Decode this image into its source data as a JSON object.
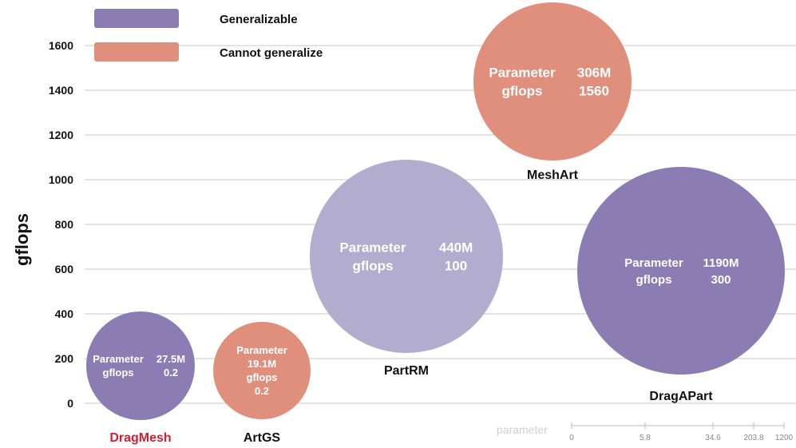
{
  "chart_data": {
    "type": "bubble",
    "ylabel": "gflops",
    "yticks": [
      0,
      200,
      400,
      600,
      800,
      1000,
      1200,
      1400,
      1600
    ],
    "grid": true,
    "legend": {
      "placement": "top-left",
      "entries": [
        {
          "label": "Generalizable",
          "color": "#8b7db3"
        },
        {
          "label": "Cannot generalize",
          "color": "#e08f7d"
        }
      ]
    },
    "bubbles": [
      {
        "name": "DragMesh",
        "name_color": "#cc2233",
        "class": "Generalizable",
        "color": "#8b7db3",
        "lines": [
          [
            "Parameter",
            "27.5M"
          ],
          [
            "gflops",
            "0.2"
          ]
        ],
        "y": 170
      },
      {
        "name": "ArtGS",
        "name_color": "#111111",
        "class": "Cannot generalize",
        "color": "#e08f7d",
        "lines": [
          [
            "Parameter"
          ],
          [
            "19.1M"
          ],
          [
            "gflops"
          ],
          [
            "0.2"
          ]
        ],
        "y": 150
      },
      {
        "name": "PartRM",
        "name_color": "#111111",
        "class": "Generalizable",
        "color": "#b2acce",
        "lines": [
          [
            "Parameter",
            "440M"
          ],
          [
            "gflops",
            "100"
          ]
        ],
        "y": 660
      },
      {
        "name": "MeshArt",
        "name_color": "#111111",
        "class": "Cannot generalize",
        "color": "#e08f7d",
        "lines": [
          [
            "Parameter",
            "306M"
          ],
          [
            "gflops",
            "1560"
          ]
        ],
        "y": 1440
      },
      {
        "name": "DragAPart",
        "name_color": "#111111",
        "class": "Generalizable",
        "color": "#8b7db3",
        "lines": [
          [
            "Parameter",
            "1190M"
          ],
          [
            "gflops",
            "300"
          ]
        ],
        "y": 590
      }
    ],
    "size_scale": {
      "title": "parameter",
      "ticks": [
        "0",
        "5.8",
        "34.6",
        "203.8",
        "1200"
      ]
    }
  }
}
